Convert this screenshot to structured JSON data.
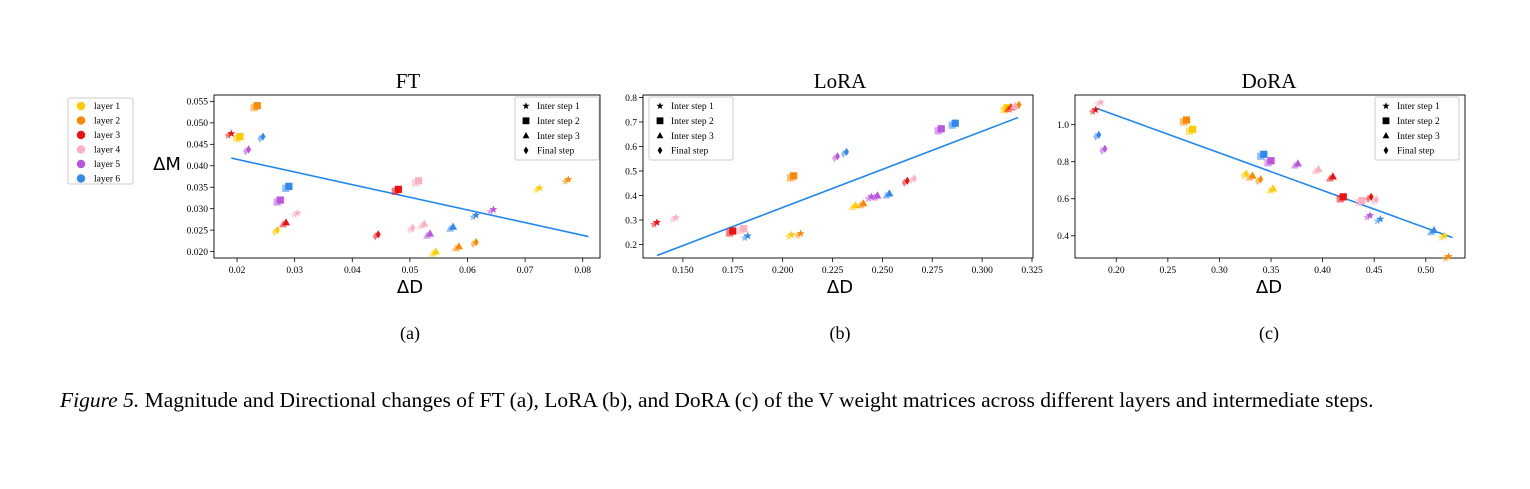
{
  "figure": {
    "caption_label": "Figure 5.",
    "caption_text": " Magnitude and Directional changes of FT (a), LoRA (b), and DoRA (c) of the V weight matrices across different layers and intermediate steps."
  },
  "legend_layers": {
    "items": [
      {
        "label": "layer 1",
        "color": "#ffcc00"
      },
      {
        "label": "layer 2",
        "color": "#ff8800"
      },
      {
        "label": "layer 3",
        "color": "#ee1111"
      },
      {
        "label": "layer 4",
        "color": "#ffb0c0"
      },
      {
        "label": "layer 5",
        "color": "#bb55dd"
      },
      {
        "label": "layer 6",
        "color": "#3388ee"
      }
    ]
  },
  "legend_steps": {
    "items": [
      {
        "label": "Inter step 1",
        "marker": "star"
      },
      {
        "label": "Inter step 2",
        "marker": "square"
      },
      {
        "label": "Inter step 3",
        "marker": "triangle"
      },
      {
        "label": "Final step",
        "marker": "diamond"
      }
    ]
  },
  "colors": {
    "regression_line": "#2288ee"
  },
  "chart_data": [
    {
      "type": "scatter",
      "title": "FT",
      "subcaption": "(a)",
      "xlabel": "ΔD",
      "ylabel": "ΔM",
      "xlim": [
        0.016,
        0.083
      ],
      "ylim": [
        0.0185,
        0.0565
      ],
      "xticks": [
        0.02,
        0.03,
        0.04,
        0.05,
        0.06,
        0.07,
        0.08
      ],
      "xtick_labels": [
        "0.02",
        "0.03",
        "0.04",
        "0.05",
        "0.06",
        "0.07",
        "0.08"
      ],
      "yticks": [
        0.02,
        0.025,
        0.03,
        0.035,
        0.04,
        0.045,
        0.05,
        0.055
      ],
      "ytick_labels": [
        "0.020",
        "0.025",
        "0.030",
        "0.035",
        "0.040",
        "0.045",
        "0.050",
        "0.055"
      ],
      "regression": {
        "x": [
          0.019,
          0.081
        ],
        "y": [
          0.0418,
          0.0235
        ]
      },
      "series": [
        {
          "name": "layer 1",
          "color": "#ffcc00",
          "points": [
            {
              "step": "Inter step 1",
              "x": 0.0725,
              "y": 0.0348
            },
            {
              "step": "Inter step 2",
              "x": 0.0205,
              "y": 0.0468
            },
            {
              "step": "Inter step 3",
              "x": 0.0545,
              "y": 0.02
            },
            {
              "step": "Final step",
              "x": 0.027,
              "y": 0.025
            }
          ]
        },
        {
          "name": "layer 2",
          "color": "#ff8800",
          "points": [
            {
              "step": "Inter step 1",
              "x": 0.0775,
              "y": 0.0368
            },
            {
              "step": "Inter step 2",
              "x": 0.0235,
              "y": 0.054
            },
            {
              "step": "Inter step 3",
              "x": 0.0585,
              "y": 0.0212
            },
            {
              "step": "Final step",
              "x": 0.0615,
              "y": 0.0222
            }
          ]
        },
        {
          "name": "layer 3",
          "color": "#ee1111",
          "points": [
            {
              "step": "Inter step 1",
              "x": 0.019,
              "y": 0.0475
            },
            {
              "step": "Inter step 2",
              "x": 0.048,
              "y": 0.0345
            },
            {
              "step": "Inter step 3",
              "x": 0.0285,
              "y": 0.0268
            },
            {
              "step": "Final step",
              "x": 0.0445,
              "y": 0.024
            }
          ]
        },
        {
          "name": "layer 4",
          "color": "#ffb0c0",
          "points": [
            {
              "step": "Inter step 1",
              "x": 0.0305,
              "y": 0.029
            },
            {
              "step": "Inter step 2",
              "x": 0.0515,
              "y": 0.0365
            },
            {
              "step": "Inter step 3",
              "x": 0.0525,
              "y": 0.0265
            },
            {
              "step": "Final step",
              "x": 0.0505,
              "y": 0.0255
            }
          ]
        },
        {
          "name": "layer 5",
          "color": "#bb55dd",
          "points": [
            {
              "step": "Inter step 1",
              "x": 0.0645,
              "y": 0.0298
            },
            {
              "step": "Inter step 2",
              "x": 0.0275,
              "y": 0.032
            },
            {
              "step": "Inter step 3",
              "x": 0.0535,
              "y": 0.0242
            },
            {
              "step": "Final step",
              "x": 0.022,
              "y": 0.0438
            }
          ]
        },
        {
          "name": "layer 6",
          "color": "#3388ee",
          "points": [
            {
              "step": "Inter step 1",
              "x": 0.0615,
              "y": 0.0285
            },
            {
              "step": "Inter step 2",
              "x": 0.029,
              "y": 0.0352
            },
            {
              "step": "Inter step 3",
              "x": 0.0575,
              "y": 0.0258
            },
            {
              "step": "Final step",
              "x": 0.0245,
              "y": 0.0468
            }
          ]
        }
      ]
    },
    {
      "type": "scatter",
      "title": "LoRA",
      "subcaption": "(b)",
      "xlabel": "ΔD",
      "ylabel": "",
      "xlim": [
        0.13,
        0.3255
      ],
      "ylim": [
        0.145,
        0.81
      ],
      "xticks": [
        0.15,
        0.175,
        0.2,
        0.225,
        0.25,
        0.275,
        0.3,
        0.325
      ],
      "xtick_labels": [
        "0.150",
        "0.175",
        "0.200",
        "0.225",
        "0.250",
        "0.275",
        "0.300",
        "0.325"
      ],
      "yticks": [
        0.2,
        0.3,
        0.4,
        0.5,
        0.6,
        0.7,
        0.8
      ],
      "ytick_labels": [
        "0.2",
        "0.3",
        "0.4",
        "0.5",
        "0.6",
        "0.7",
        "0.8"
      ],
      "regression": {
        "x": [
          0.137,
          0.318
        ],
        "y": [
          0.155,
          0.718
        ]
      },
      "series": [
        {
          "name": "layer 1",
          "color": "#ffcc00",
          "points": [
            {
              "step": "Inter step 1",
              "x": 0.2045,
              "y": 0.24
            },
            {
              "step": "Inter step 2",
              "x": 0.3125,
              "y": 0.758
            },
            {
              "step": "Inter step 3",
              "x": 0.2365,
              "y": 0.36
            },
            {
              "step": "Final step",
              "x": 0.3135,
              "y": 0.76
            }
          ]
        },
        {
          "name": "layer 2",
          "color": "#ff8800",
          "points": [
            {
              "step": "Inter step 1",
              "x": 0.209,
              "y": 0.245
            },
            {
              "step": "Inter step 2",
              "x": 0.2055,
              "y": 0.48
            },
            {
              "step": "Inter step 3",
              "x": 0.2405,
              "y": 0.368
            },
            {
              "step": "Final step",
              "x": 0.3185,
              "y": 0.77
            }
          ]
        },
        {
          "name": "layer 3",
          "color": "#ee1111",
          "points": [
            {
              "step": "Inter step 1",
              "x": 0.137,
              "y": 0.29
            },
            {
              "step": "Inter step 2",
              "x": 0.175,
              "y": 0.255
            },
            {
              "step": "Inter step 3",
              "x": 0.3145,
              "y": 0.76
            },
            {
              "step": "Final step",
              "x": 0.2625,
              "y": 0.46
            }
          ]
        },
        {
          "name": "layer 4",
          "color": "#ffb0c0",
          "points": [
            {
              "step": "Inter step 1",
              "x": 0.1465,
              "y": 0.31
            },
            {
              "step": "Inter step 2",
              "x": 0.1805,
              "y": 0.265
            },
            {
              "step": "Inter step 3",
              "x": 0.3165,
              "y": 0.765
            },
            {
              "step": "Final step",
              "x": 0.266,
              "y": 0.47
            }
          ]
        },
        {
          "name": "layer 5",
          "color": "#bb55dd",
          "points": [
            {
              "step": "Inter step 1",
              "x": 0.2445,
              "y": 0.395
            },
            {
              "step": "Inter step 2",
              "x": 0.2795,
              "y": 0.672
            },
            {
              "step": "Inter step 3",
              "x": 0.2475,
              "y": 0.4
            },
            {
              "step": "Final step",
              "x": 0.2275,
              "y": 0.56
            }
          ]
        },
        {
          "name": "layer 6",
          "color": "#3388ee",
          "points": [
            {
              "step": "Inter step 1",
              "x": 0.1825,
              "y": 0.235
            },
            {
              "step": "Inter step 2",
              "x": 0.2865,
              "y": 0.695
            },
            {
              "step": "Inter step 3",
              "x": 0.2535,
              "y": 0.408
            },
            {
              "step": "Final step",
              "x": 0.232,
              "y": 0.578
            }
          ]
        }
      ]
    },
    {
      "type": "scatter",
      "title": "DoRA",
      "subcaption": "(c)",
      "xlabel": "ΔD",
      "ylabel": "",
      "xlim": [
        0.16,
        0.538
      ],
      "ylim": [
        0.28,
        1.16
      ],
      "xticks": [
        0.2,
        0.25,
        0.3,
        0.35,
        0.4,
        0.45,
        0.5
      ],
      "xtick_labels": [
        "0.20",
        "0.25",
        "0.30",
        "0.35",
        "0.40",
        "0.45",
        "0.50"
      ],
      "yticks": [
        0.4,
        0.6,
        0.8,
        1.0
      ],
      "ytick_labels": [
        "0.4",
        "0.6",
        "0.8",
        "1.0"
      ],
      "regression": {
        "x": [
          0.18,
          0.526
        ],
        "y": [
          1.09,
          0.39
        ]
      },
      "series": [
        {
          "name": "layer 1",
          "color": "#ffcc00",
          "points": [
            {
              "step": "Inter step 1",
              "x": 0.518,
              "y": 0.4
            },
            {
              "step": "Inter step 2",
              "x": 0.274,
              "y": 0.975
            },
            {
              "step": "Inter step 3",
              "x": 0.352,
              "y": 0.655
            },
            {
              "step": "Final step",
              "x": 0.326,
              "y": 0.735
            }
          ]
        },
        {
          "name": "layer 2",
          "color": "#ff8800",
          "points": [
            {
              "step": "Inter step 1",
              "x": 0.522,
              "y": 0.288
            },
            {
              "step": "Inter step 2",
              "x": 0.268,
              "y": 1.025
            },
            {
              "step": "Inter step 3",
              "x": 0.332,
              "y": 0.725
            },
            {
              "step": "Final step",
              "x": 0.34,
              "y": 0.705
            }
          ]
        },
        {
          "name": "layer 3",
          "color": "#ee1111",
          "points": [
            {
              "step": "Inter step 1",
              "x": 0.18,
              "y": 1.08
            },
            {
              "step": "Inter step 2",
              "x": 0.42,
              "y": 0.61
            },
            {
              "step": "Inter step 3",
              "x": 0.41,
              "y": 0.72
            },
            {
              "step": "Final step",
              "x": 0.447,
              "y": 0.61
            }
          ]
        },
        {
          "name": "layer 4",
          "color": "#ffb0c0",
          "points": [
            {
              "step": "Inter step 1",
              "x": 0.185,
              "y": 1.12
            },
            {
              "step": "Inter step 2",
              "x": 0.438,
              "y": 0.59
            },
            {
              "step": "Inter step 3",
              "x": 0.396,
              "y": 0.76
            },
            {
              "step": "Final step",
              "x": 0.452,
              "y": 0.595
            }
          ]
        },
        {
          "name": "layer 5",
          "color": "#bb55dd",
          "points": [
            {
              "step": "Inter step 1",
              "x": 0.446,
              "y": 0.51
            },
            {
              "step": "Inter step 2",
              "x": 0.35,
              "y": 0.805
            },
            {
              "step": "Inter step 3",
              "x": 0.376,
              "y": 0.79
            },
            {
              "step": "Final step",
              "x": 0.189,
              "y": 0.87
            }
          ]
        },
        {
          "name": "layer 6",
          "color": "#3388ee",
          "points": [
            {
              "step": "Inter step 1",
              "x": 0.456,
              "y": 0.49
            },
            {
              "step": "Inter step 2",
              "x": 0.343,
              "y": 0.84
            },
            {
              "step": "Inter step 3",
              "x": 0.508,
              "y": 0.43
            },
            {
              "step": "Final step",
              "x": 0.183,
              "y": 0.945
            }
          ]
        }
      ]
    }
  ]
}
